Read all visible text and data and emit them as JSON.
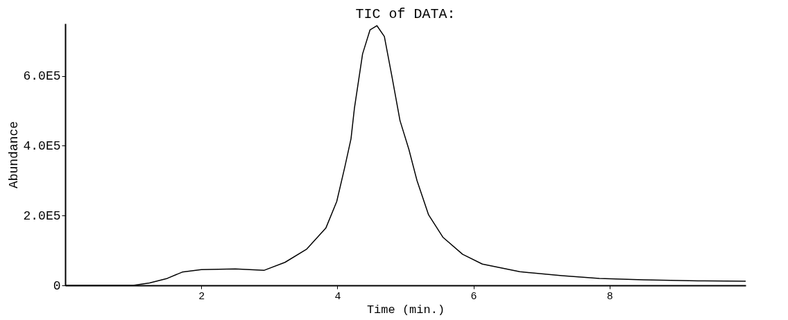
{
  "chart_data": {
    "type": "line",
    "title": "TIC of DATA:",
    "xlabel": "Time (min.)",
    "ylabel": "Abundance",
    "x": [
      0,
      0.5,
      1.0,
      1.24,
      1.5,
      1.72,
      2.0,
      2.5,
      2.92,
      3.23,
      3.55,
      3.83,
      3.99,
      4.11,
      4.2,
      4.25,
      4.37,
      4.48,
      4.58,
      4.69,
      4.8,
      4.92,
      5.05,
      5.17,
      5.34,
      5.55,
      5.84,
      6.13,
      6.68,
      7.3,
      7.85,
      8.5,
      9.3,
      10.0
    ],
    "series": [
      {
        "color": "#000000",
        "values": [
          0,
          0,
          0,
          7000,
          20000,
          38000,
          45000,
          47000,
          43000,
          66000,
          104000,
          164000,
          240000,
          340000,
          420000,
          507000,
          663000,
          732000,
          744000,
          713000,
          600000,
          472000,
          390000,
          300000,
          202000,
          138000,
          89000,
          61000,
          39000,
          28000,
          20000,
          16000,
          13000,
          12000
        ]
      }
    ],
    "xlim": [
      0,
      10
    ],
    "xticks": [
      2,
      4,
      6,
      8
    ],
    "ylim": [
      0,
      750000
    ],
    "yticks": [
      {
        "value": 0,
        "label": "0"
      },
      {
        "value": 200000,
        "label": "2.0E5"
      },
      {
        "value": 400000,
        "label": "4.0E5"
      },
      {
        "value": 600000,
        "label": "6.0E5"
      }
    ],
    "grid": false,
    "legend": false,
    "marker": "none",
    "line_style": "solid"
  }
}
